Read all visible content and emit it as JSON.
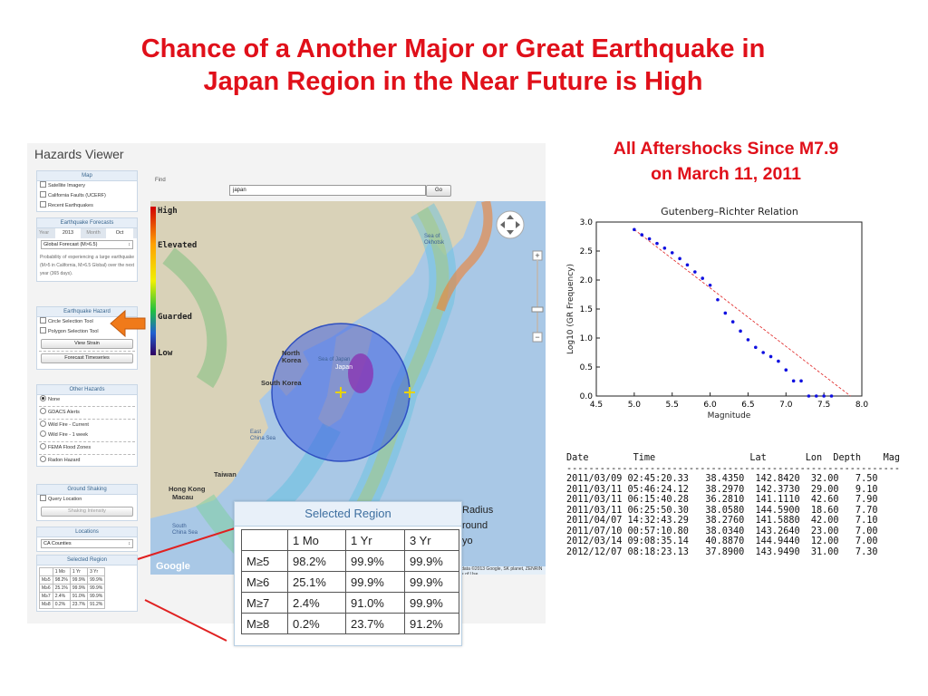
{
  "slide": {
    "title_line1": "Chance of a Another Major or Great Earthquake in",
    "title_line2": "Japan Region in the Near Future is High"
  },
  "hazards_viewer": {
    "title": "Hazards Viewer",
    "map_panel": {
      "header": "Map",
      "items": [
        "Satellite Imagery",
        "California Faults (UCERF)",
        "Recent Earthquakes"
      ]
    },
    "forecast_panel": {
      "header": "Earthquake Forecasts",
      "year_label": "Year",
      "year_value": "2013",
      "month_label": "Month",
      "month_value": "Oct",
      "forecast_select": "Global Forecast (M>6.5)",
      "description": "Probability of experiencing a large earthquake (M>5 in California, M>6.5 Global) over the next year (365 days)."
    },
    "hazard_panel": {
      "header": "Earthquake Hazard",
      "items": [
        "Circle Selection Tool",
        "Polygon Selection Tool"
      ],
      "view_strain": "View Strain",
      "forecast_timeseries": "Forecast Timeseries"
    },
    "other_hazards": {
      "header": "Other Hazards",
      "items": [
        "None",
        "GDACS Alerts",
        "Wild Fire - Current",
        "Wild Fire - 1 week",
        "FEMA Flood Zones",
        "Radon Hazard"
      ]
    },
    "ground_shaking": {
      "header": "Ground Shaking",
      "query_location": "Query Location",
      "shaking_intensity": "Shaking Intensity"
    },
    "locations": {
      "header": "Locations",
      "select": "CA Counties"
    },
    "selected_region_small": {
      "header": "Selected Region"
    },
    "find_label": "Find",
    "find_value": "japan",
    "go_label": "Go",
    "map": {
      "legend": [
        "High",
        "Elevated",
        "Guarded",
        "Low"
      ],
      "labels": {
        "north_korea": "North\nKorea",
        "south_korea": "South Korea",
        "japan": "Japan",
        "sea_of_japan": "Sea of Japan",
        "sea_of_okhotsk": "Sea of\nOkhotsk",
        "east_china_sea": "East\nChina Sea",
        "taiwan": "Taiwan",
        "hong_kong": "Hong Kong",
        "macau": "Macau",
        "south_china_sea": "South\nChina Sea",
        "google": "Google",
        "attribution": "Map data ©2013 Google, SK planet, ZENRIN   Terms of Use"
      }
    }
  },
  "selected_region": {
    "title": "Selected Region",
    "columns": [
      "",
      "1 Mo",
      "1 Yr",
      "3 Yr"
    ],
    "rows": [
      [
        "M≥5",
        "98.2%",
        "99.9%",
        "99.9%"
      ],
      [
        "M≥6",
        "25.1%",
        "99.9%",
        "99.9%"
      ],
      [
        "M≥7",
        "2.4%",
        "91.0%",
        "99.9%"
      ],
      [
        "M≥8",
        "0.2%",
        "23.7%",
        "91.2%"
      ]
    ]
  },
  "partial_text": [
    "Radius",
    "round",
    "yo"
  ],
  "aftershocks_title_line1": "All Aftershocks Since M7.9",
  "aftershocks_title_line2": "on March 11, 2011",
  "chart_data": {
    "type": "scatter",
    "title": "Gutenberg–Richter Relation",
    "xlabel": "Magnitude",
    "ylabel": "Log10 (GR Frequency)",
    "xlim": [
      4.5,
      8.0
    ],
    "ylim": [
      0.0,
      3.0
    ],
    "xticks": [
      "4.5",
      "5.0",
      "5.5",
      "6.0",
      "6.5",
      "7.0",
      "7.5",
      "8.0"
    ],
    "yticks": [
      "0.0",
      "0.5",
      "1.0",
      "1.5",
      "2.0",
      "2.5",
      "3.0"
    ],
    "points": {
      "x": [
        5.0,
        5.1,
        5.2,
        5.3,
        5.4,
        5.5,
        5.6,
        5.7,
        5.8,
        5.9,
        6.0,
        6.1,
        6.2,
        6.3,
        6.4,
        6.5,
        6.6,
        6.7,
        6.8,
        6.9,
        7.0,
        7.1,
        7.2,
        7.3,
        7.4,
        7.5,
        7.6
      ],
      "y": [
        2.87,
        2.78,
        2.71,
        2.63,
        2.55,
        2.47,
        2.37,
        2.26,
        2.14,
        2.03,
        1.91,
        1.66,
        1.43,
        1.28,
        1.12,
        0.97,
        0.84,
        0.75,
        0.68,
        0.6,
        0.45,
        0.26,
        0.26,
        0.0,
        0.0,
        0.0,
        0.0
      ]
    },
    "fit_line": {
      "x": [
        5.0,
        7.85
      ],
      "y": [
        2.87,
        0.0
      ]
    },
    "point_color": "#1010e0",
    "fit_color": "#e02020"
  },
  "eq_table": {
    "columns": [
      "Date",
      "Time",
      "Lat",
      "Lon",
      "Depth",
      "Mag"
    ],
    "rows": [
      [
        "2011/03/09",
        "02:45:20.33",
        "38.4350",
        "142.8420",
        "32.00",
        "7.50"
      ],
      [
        "2011/03/11",
        "05:46:24.12",
        "38.2970",
        "142.3730",
        "29.00",
        "9.10"
      ],
      [
        "2011/03/11",
        "06:15:40.28",
        "36.2810",
        "141.1110",
        "42.60",
        "7.90"
      ],
      [
        "2011/03/11",
        "06:25:50.30",
        "38.0580",
        "144.5900",
        "18.60",
        "7.70"
      ],
      [
        "2011/04/07",
        "14:32:43.29",
        "38.2760",
        "141.5880",
        "42.00",
        "7.10"
      ],
      [
        "2011/07/10",
        "00:57:10.80",
        "38.0340",
        "143.2640",
        "23.00",
        "7.00"
      ],
      [
        "2012/03/14",
        "09:08:35.14",
        "40.8870",
        "144.9440",
        "12.00",
        "7.00"
      ],
      [
        "2012/12/07",
        "08:18:23.13",
        "37.8900",
        "143.9490",
        "31.00",
        "7.30"
      ]
    ]
  }
}
